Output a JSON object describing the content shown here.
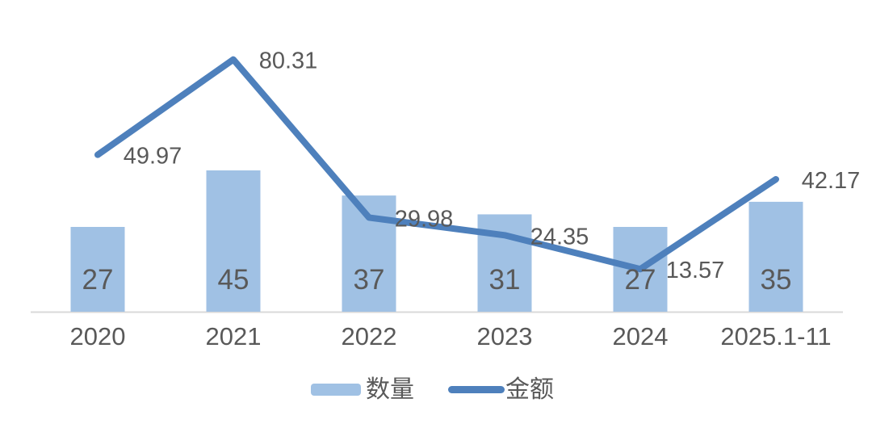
{
  "chart_data": {
    "type": "combo",
    "categories": [
      "2020",
      "2021",
      "2022",
      "2023",
      "2024",
      "2025.1-11"
    ],
    "series": [
      {
        "name": "数量",
        "type": "bar",
        "color": "#A0C1E4",
        "values": [
          27,
          45,
          37,
          31,
          27,
          35
        ],
        "data_labels": [
          "27",
          "45",
          "37",
          "31",
          "27",
          "35"
        ],
        "label_position": "inside-base"
      },
      {
        "name": "金额",
        "type": "line",
        "color": "#4E80BC",
        "values": [
          49.97,
          80.31,
          29.98,
          24.35,
          13.57,
          42.17
        ],
        "data_labels": [
          "49.97",
          "80.31",
          "29.98",
          "24.35",
          "13.57",
          "42.17"
        ],
        "label_position": "right-of-point"
      }
    ],
    "title": "",
    "xlabel": "",
    "ylabel": "",
    "ylim": [
      0,
      90
    ],
    "grid": false,
    "y_axis_visible": false,
    "x_axis_line_color": "#D9D9D9",
    "label_color": "#595959",
    "legend_position": "bottom"
  }
}
